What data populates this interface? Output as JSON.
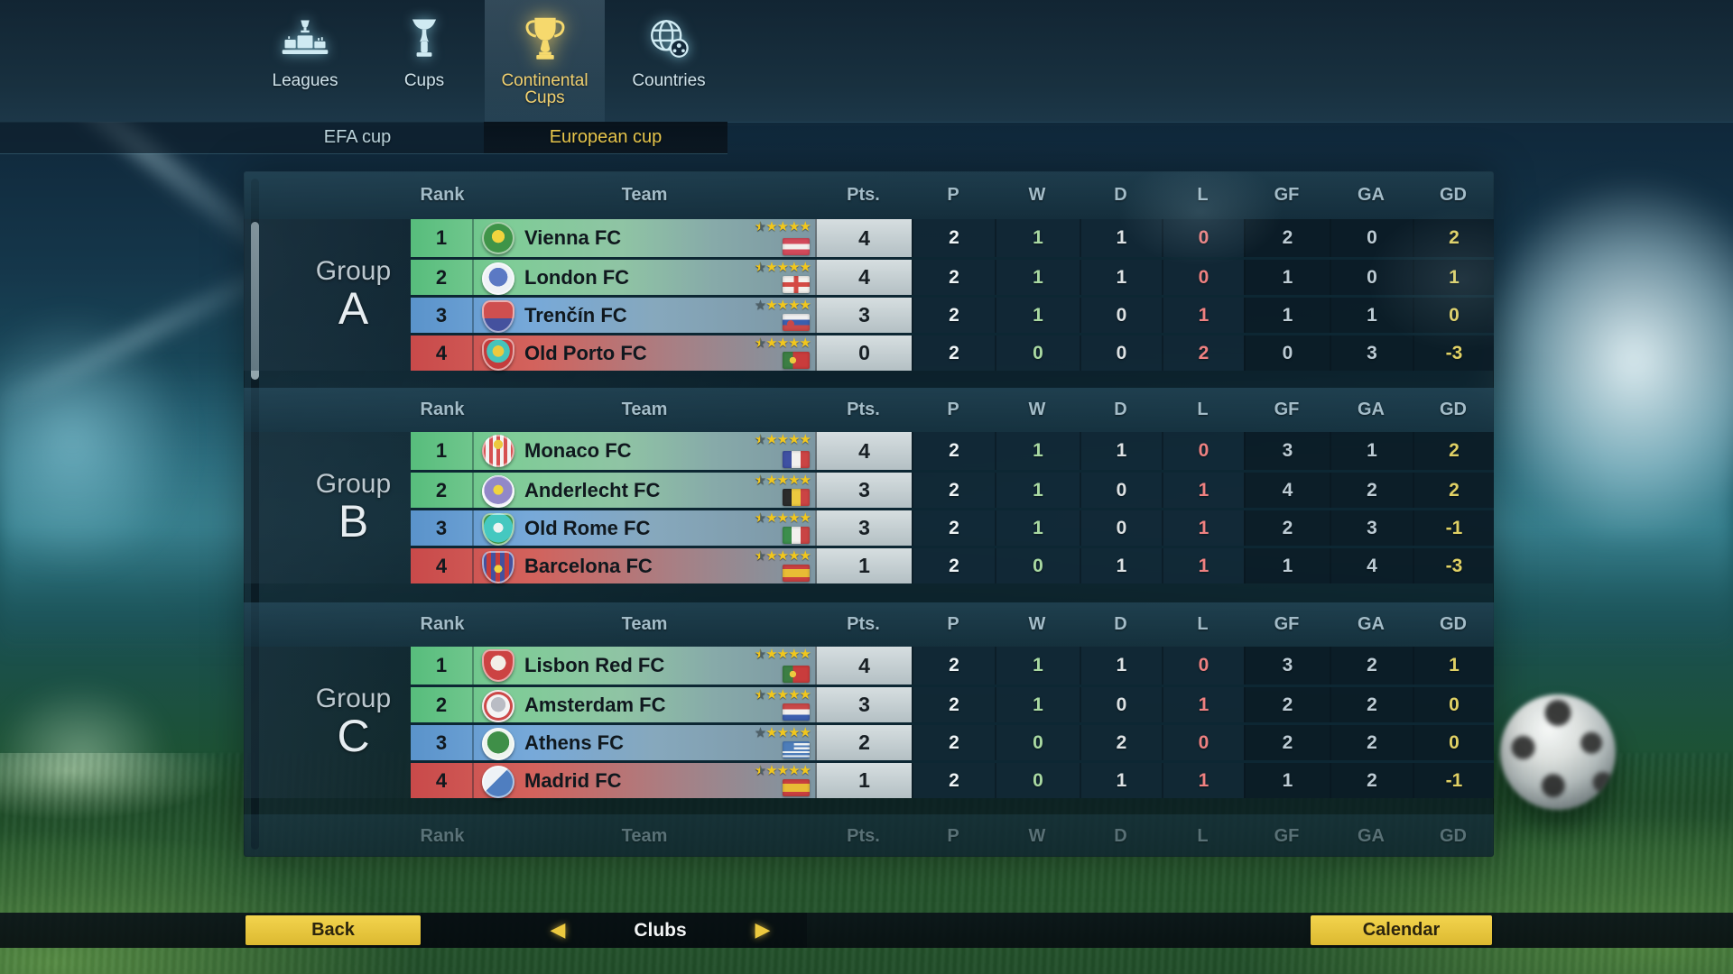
{
  "topnav": {
    "tabs": [
      {
        "label": "Leagues",
        "icon": "podium-icon",
        "active": false
      },
      {
        "label": "Cups",
        "icon": "cup-icon",
        "active": false
      },
      {
        "label": "Continental Cups",
        "icon": "trophy-icon",
        "active": true
      },
      {
        "label": "Countries",
        "icon": "globe-icon",
        "active": false
      }
    ],
    "subtabs": [
      {
        "label": "EFA cup",
        "active": false
      },
      {
        "label": "European cup",
        "active": true
      }
    ]
  },
  "table": {
    "columns": {
      "rank": "Rank",
      "team": "Team",
      "pts": "Pts.",
      "p": "P",
      "w": "W",
      "d": "D",
      "l": "L",
      "gf": "GF",
      "ga": "GA",
      "gd": "GD"
    }
  },
  "groups": [
    {
      "name": "Group",
      "letter": "A",
      "teams": [
        {
          "rank": "1",
          "team": "Vienna FC",
          "stars": 4.5,
          "flag": "austria",
          "badge": "vienna",
          "pts": "4",
          "p": "2",
          "w": "1",
          "d": "1",
          "l": "0",
          "gf": "2",
          "ga": "0",
          "gd": "2"
        },
        {
          "rank": "2",
          "team": "London FC",
          "stars": 4.5,
          "flag": "england",
          "badge": "london",
          "pts": "4",
          "p": "2",
          "w": "1",
          "d": "1",
          "l": "0",
          "gf": "1",
          "ga": "0",
          "gd": "1"
        },
        {
          "rank": "3",
          "team": "Trenčín FC",
          "stars": 4.0,
          "flag": "slovakia",
          "badge": "trencin",
          "pts": "3",
          "p": "2",
          "w": "1",
          "d": "0",
          "l": "1",
          "gf": "1",
          "ga": "1",
          "gd": "0"
        },
        {
          "rank": "4",
          "team": "Old Porto FC",
          "stars": 4.5,
          "flag": "portugal",
          "badge": "oldporto",
          "pts": "0",
          "p": "2",
          "w": "0",
          "d": "0",
          "l": "2",
          "gf": "0",
          "ga": "3",
          "gd": "-3"
        }
      ]
    },
    {
      "name": "Group",
      "letter": "B",
      "teams": [
        {
          "rank": "1",
          "team": "Monaco FC",
          "stars": 4.5,
          "flag": "france",
          "badge": "monaco",
          "pts": "4",
          "p": "2",
          "w": "1",
          "d": "1",
          "l": "0",
          "gf": "3",
          "ga": "1",
          "gd": "2"
        },
        {
          "rank": "2",
          "team": "Anderlecht FC",
          "stars": 4.5,
          "flag": "belgium",
          "badge": "anderlecht",
          "pts": "3",
          "p": "2",
          "w": "1",
          "d": "0",
          "l": "1",
          "gf": "4",
          "ga": "2",
          "gd": "2"
        },
        {
          "rank": "3",
          "team": "Old Rome FC",
          "stars": 4.5,
          "flag": "italy",
          "badge": "oldrome",
          "pts": "3",
          "p": "2",
          "w": "1",
          "d": "0",
          "l": "1",
          "gf": "2",
          "ga": "3",
          "gd": "-1"
        },
        {
          "rank": "4",
          "team": "Barcelona FC",
          "stars": 4.5,
          "flag": "spain",
          "badge": "barcelona",
          "pts": "1",
          "p": "2",
          "w": "0",
          "d": "1",
          "l": "1",
          "gf": "1",
          "ga": "4",
          "gd": "-3"
        }
      ]
    },
    {
      "name": "Group",
      "letter": "C",
      "teams": [
        {
          "rank": "1",
          "team": "Lisbon Red FC",
          "stars": 4.5,
          "flag": "portugal",
          "badge": "lisbonred",
          "pts": "4",
          "p": "2",
          "w": "1",
          "d": "1",
          "l": "0",
          "gf": "3",
          "ga": "2",
          "gd": "1"
        },
        {
          "rank": "2",
          "team": "Amsterdam FC",
          "stars": 4.5,
          "flag": "netherlands",
          "badge": "amsterdam",
          "pts": "3",
          "p": "2",
          "w": "1",
          "d": "0",
          "l": "1",
          "gf": "2",
          "ga": "2",
          "gd": "0"
        },
        {
          "rank": "3",
          "team": "Athens FC",
          "stars": 4.0,
          "flag": "greece",
          "badge": "athens",
          "pts": "2",
          "p": "2",
          "w": "0",
          "d": "2",
          "l": "0",
          "gf": "2",
          "ga": "2",
          "gd": "0"
        },
        {
          "rank": "4",
          "team": "Madrid FC",
          "stars": 4.5,
          "flag": "spain",
          "badge": "madrid",
          "pts": "1",
          "p": "2",
          "w": "0",
          "d": "1",
          "l": "1",
          "gf": "1",
          "ga": "2",
          "gd": "-1"
        }
      ]
    }
  ],
  "footer": {
    "back_label": "Back",
    "clubs_label": "Clubs",
    "calendar_label": "Calendar",
    "prev_icon": "left-arrow-icon",
    "next_icon": "right-arrow-icon"
  },
  "colors": {
    "accent_gold": "#e9c84d",
    "row_green": "#57bd7c",
    "row_blue": "#5a93cb",
    "row_red": "#c94a4a",
    "win_green": "#a9d9a2",
    "loss_red": "#ee8181",
    "gd_yellow": "#e0d165",
    "star_yellow": "#f2c71c"
  }
}
